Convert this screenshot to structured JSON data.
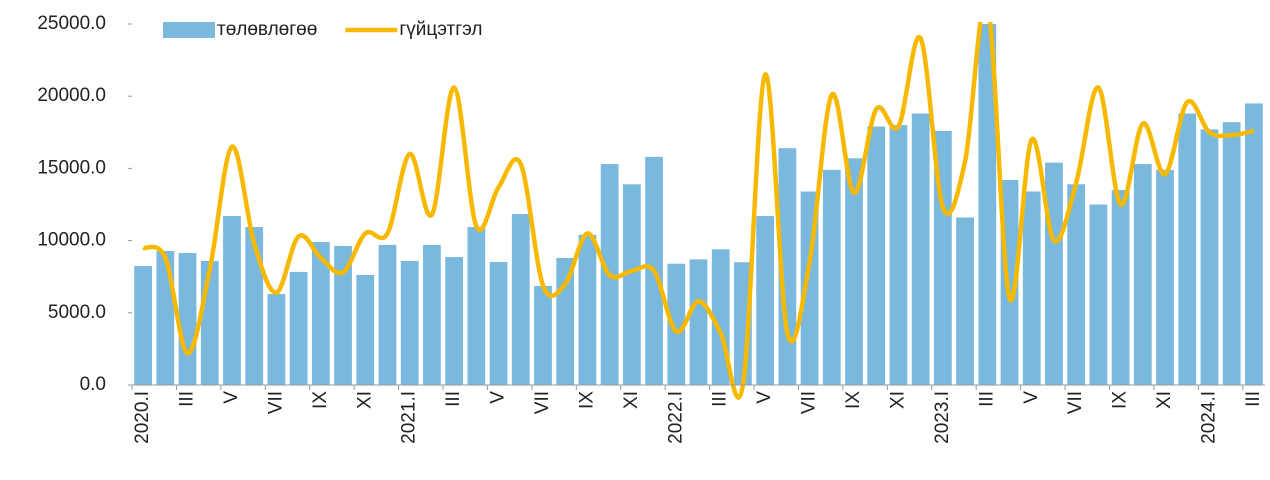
{
  "chart_data": {
    "type": "bar_line",
    "categories": [
      "2020.I",
      null,
      "III",
      null,
      "V",
      null,
      "VII",
      null,
      "IX",
      null,
      "XI",
      null,
      "2021.I",
      null,
      "III",
      null,
      "V",
      null,
      "VII",
      null,
      "IX",
      null,
      "XI",
      null,
      "2022.I",
      null,
      "III",
      null,
      "V",
      null,
      "VII",
      null,
      "IX",
      null,
      "XI",
      null,
      "2023.I",
      null,
      "III",
      null,
      "V",
      null,
      "VII",
      null,
      "IX",
      null,
      "XI",
      null,
      "2024.I",
      null,
      "III"
    ],
    "series": [
      {
        "name": "төлөвлөгөө",
        "type": "bar",
        "color": "#7ab9dd",
        "values": [
          8240,
          9280,
          9140,
          8590,
          11700,
          10940,
          6300,
          7830,
          9900,
          9630,
          7620,
          9700,
          8590,
          9700,
          8860,
          10940,
          8520,
          11840,
          6860,
          8800,
          10400,
          15300,
          13900,
          15800,
          8400,
          8700,
          9400,
          8500,
          11700,
          16400,
          13400,
          14900,
          15700,
          17900,
          18000,
          18800,
          17600,
          11600,
          25000,
          14200,
          13400,
          15400,
          13900,
          12500,
          13500,
          15300,
          14900,
          18800,
          17700,
          18200,
          19500
        ]
      },
      {
        "name": "гүйцэтгэл",
        "type": "line",
        "color": "#f7b900",
        "values": [
          9500,
          8800,
          2200,
          8000,
          16500,
          9800,
          6400,
          10300,
          8800,
          7800,
          10500,
          10500,
          16000,
          11800,
          20600,
          11000,
          13700,
          15300,
          6900,
          7000,
          10500,
          7600,
          7900,
          7900,
          3700,
          5800,
          3600,
          0,
          21500,
          3600,
          8500,
          20100,
          13300,
          19100,
          17900,
          24000,
          12300,
          15500,
          26500,
          6000,
          17000,
          10000,
          14000,
          20600,
          12500,
          18100,
          14600,
          19600,
          17500,
          17300,
          17600
        ]
      }
    ],
    "ylim": [
      0,
      25000
    ],
    "yticks": [
      {
        "value": 0,
        "label": "0.0"
      },
      {
        "value": 5000,
        "label": "5000.0"
      },
      {
        "value": 10000,
        "label": "10000.0"
      },
      {
        "value": 15000,
        "label": "15000.0"
      },
      {
        "value": 20000,
        "label": "20000.0"
      },
      {
        "value": 25000,
        "label": "25000.0"
      }
    ],
    "legend": "top-left"
  }
}
